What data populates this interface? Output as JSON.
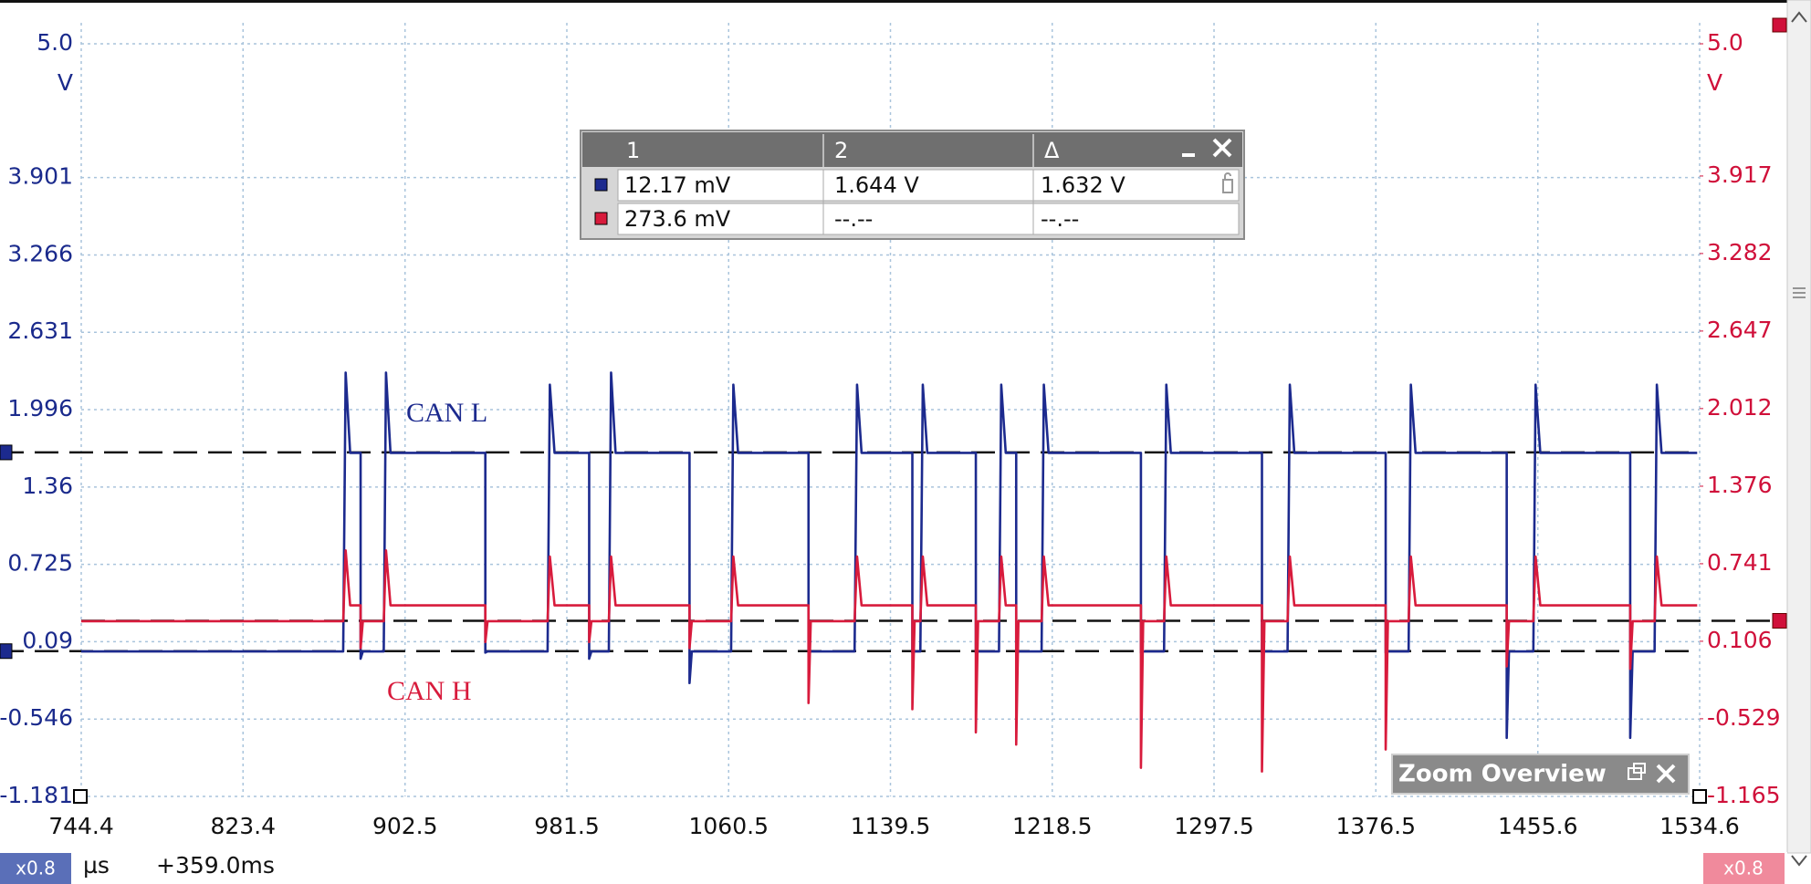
{
  "chart_data": {
    "type": "line",
    "xlabel": "µs",
    "ylabel": "V",
    "y2label": "V",
    "xlim": [
      744.4,
      1534.6
    ],
    "xticks": [
      744.4,
      823.4,
      902.5,
      981.5,
      1060.5,
      1139.5,
      1218.5,
      1297.5,
      1376.5,
      1455.6,
      1534.6
    ],
    "ylim": [
      -1.181,
      5.0
    ],
    "yticks": [
      -1.181,
      -0.546,
      0.09,
      0.725,
      1.36,
      1.996,
      2.631,
      3.266,
      3.901,
      {
        "value": 5,
        "label": "5.0"
      }
    ],
    "y2lim": [
      -1.165,
      5.0
    ],
    "y2ticks": [
      -1.165,
      -0.529,
      0.106,
      0.741,
      1.376,
      2.012,
      2.647,
      3.282,
      3.917,
      {
        "value": 5,
        "label": "5.0"
      }
    ],
    "grid": true,
    "x": [
      744.4,
      872.3,
      873.5,
      875.7,
      880.8,
      880.8,
      881.9,
      892.1,
      893.2,
      895.4,
      941.7,
      941.7,
      942.8,
      972.1,
      973.2,
      975.5,
      992.4,
      992.4,
      993.5,
      1002.0,
      1003.1,
      1005.3,
      1041.4,
      1041.4,
      1042.5,
      1061.7,
      1062.8,
      1065.1,
      1099.5,
      1099.5,
      1100.6,
      1122.0,
      1123.2,
      1125.4,
      1150.2,
      1150.2,
      1151.3,
      1154.1,
      1155.3,
      1157.5,
      1181.2,
      1181.2,
      1182.3,
      1192.5,
      1193.6,
      1195.8,
      1200.9,
      1200.9,
      1202.0,
      1213.3,
      1214.4,
      1216.7,
      1261.8,
      1261.8,
      1262.9,
      1273.1,
      1274.2,
      1276.4,
      1320.9,
      1320.9,
      1322.1,
      1333.4,
      1334.5,
      1336.7,
      1381.3,
      1381.3,
      1382.4,
      1392.5,
      1393.6,
      1395.9,
      1440.4,
      1440.4,
      1441.5,
      1453.4,
      1454.5,
      1456.8,
      1500.7,
      1500.7,
      1501.9,
      1512.6,
      1513.7,
      1516.0,
      1533.4
    ],
    "series": [
      {
        "name": "CAN L",
        "color": "#1c2a8e",
        "axis": "y",
        "values": [
          0.01,
          0.01,
          2.3,
          1.64,
          1.64,
          -0.05,
          0.01,
          0.01,
          2.3,
          1.64,
          1.64,
          0,
          0.01,
          0.01,
          2.2,
          1.64,
          1.64,
          -0.05,
          0.01,
          0.01,
          2.3,
          1.64,
          1.64,
          -0.25,
          0.01,
          0.01,
          2.2,
          1.64,
          1.64,
          0,
          0.01,
          0.01,
          2.2,
          1.64,
          1.64,
          0,
          0.01,
          0.01,
          2.2,
          1.64,
          1.64,
          0,
          0.01,
          0.01,
          2.2,
          1.64,
          1.64,
          0,
          0.01,
          0.01,
          2.2,
          1.64,
          1.64,
          0,
          0.01,
          0.01,
          2.2,
          1.64,
          1.64,
          0,
          0.01,
          0.01,
          2.2,
          1.64,
          1.64,
          0,
          0.01,
          0.01,
          2.2,
          1.64,
          1.64,
          -0.7,
          0.01,
          0.01,
          2.2,
          1.64,
          1.64,
          -0.7,
          0.01,
          0.01,
          2.2,
          1.64,
          1.64
        ]
      },
      {
        "name": "CAN H",
        "color": "#d81b3c",
        "axis": "y2",
        "values": [
          0.27,
          0.27,
          0.85,
          0.4,
          0.4,
          0.05,
          0.27,
          0.27,
          0.85,
          0.4,
          0.4,
          0.1,
          0.27,
          0.27,
          0.8,
          0.4,
          0.4,
          0.1,
          0.27,
          0.27,
          0.8,
          0.4,
          0.4,
          0.05,
          0.27,
          0.27,
          0.8,
          0.4,
          0.4,
          -0.4,
          0.27,
          0.27,
          0.8,
          0.4,
          0.4,
          -0.45,
          0.27,
          0.27,
          0.8,
          0.4,
          0.4,
          -0.64,
          0.27,
          0.27,
          0.8,
          0.4,
          0.4,
          -0.74,
          0.27,
          0.27,
          0.8,
          0.4,
          0.4,
          -0.93,
          0.27,
          0.27,
          0.8,
          0.4,
          0.4,
          -0.96,
          0.27,
          0.27,
          0.8,
          0.4,
          0.4,
          -0.78,
          0.27,
          0.27,
          0.8,
          0.4,
          0.4,
          -0.1,
          0.27,
          0.27,
          0.8,
          0.4,
          0.4,
          -0.12,
          0.27,
          0.27,
          0.8,
          0.4,
          0.4
        ]
      }
    ],
    "cursors": [
      {
        "axis": "y",
        "value": 1.644
      },
      {
        "axis": "y",
        "value": 0.01217
      },
      {
        "axis": "y2",
        "value": 0.2736
      }
    ]
  },
  "measurement_table": {
    "columns": [
      "1",
      "2",
      "Δ"
    ],
    "rows": [
      [
        "12.17 mV",
        "1.644 V",
        "1.632 V"
      ],
      [
        "273.6 mV",
        "--.--",
        "--.--"
      ]
    ]
  },
  "zoom_overview": {
    "title": "Zoom Overview"
  },
  "status_bar": {
    "left_zoom": "x0.8",
    "offset": "+359.0ms",
    "right_zoom": "x0.8"
  }
}
